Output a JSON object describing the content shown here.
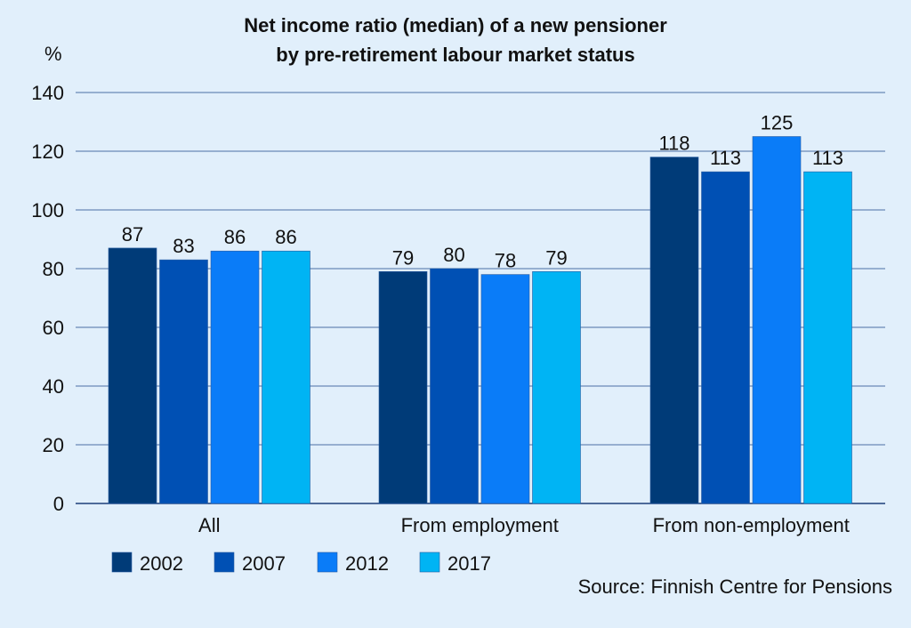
{
  "chart_data": {
    "type": "bar",
    "title": "Net income ratio (median) of a new pensioner",
    "subtitle": "by pre-retirement labour market status",
    "ylabel": "%",
    "xlabel": "",
    "ylim": [
      0,
      140
    ],
    "yticks": [
      0,
      20,
      40,
      60,
      80,
      100,
      120,
      140
    ],
    "grid": true,
    "legend_position": "bottom-left",
    "categories": [
      "All",
      "From employment",
      "From non-employment"
    ],
    "series": [
      {
        "name": "2002",
        "color": "#003b78",
        "values": [
          87,
          79,
          118
        ]
      },
      {
        "name": "2007",
        "color": "#0050b4",
        "values": [
          83,
          80,
          113
        ]
      },
      {
        "name": "2012",
        "color": "#0a7cf8",
        "values": [
          86,
          78,
          125
        ]
      },
      {
        "name": "2017",
        "color": "#00b4f4",
        "values": [
          86,
          79,
          113
        ]
      }
    ],
    "source": "Source: Finnish Centre for Pensions"
  }
}
